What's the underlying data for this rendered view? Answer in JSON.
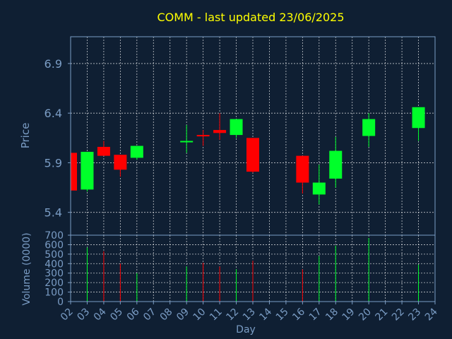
{
  "chart_data": {
    "type": "candlestick",
    "title": "COMM - last updated 23/06/2025",
    "price_panel": {
      "ylabel": "Price",
      "ylim": [
        5.17,
        7.17
      ],
      "yticks": [
        "5.4",
        "5.9",
        "6.4",
        "6.9"
      ]
    },
    "volume_panel": {
      "ylabel": "Volume (0000)",
      "ylim": [
        0,
        700
      ],
      "yticks": [
        "0",
        "100",
        "200",
        "300",
        "400",
        "500",
        "600",
        "700"
      ]
    },
    "xlabel": "Day",
    "xlim": [
      2,
      24
    ],
    "x_ticks": [
      "02",
      "03",
      "04",
      "05",
      "06",
      "07",
      "08",
      "09",
      "10",
      "11",
      "12",
      "13",
      "14",
      "15",
      "16",
      "17",
      "18",
      "19",
      "20",
      "21",
      "22",
      "23",
      "24"
    ],
    "grid": true,
    "colors": {
      "up": "#00ff2a",
      "down": "#ff0000",
      "title": "#ffff00",
      "axis_text": "#7a9cc4",
      "frame": "#7a9cc4",
      "background": "#0f1f33"
    },
    "candles": [
      {
        "day": 2,
        "open": 6.0,
        "high": 6.0,
        "low": 5.62,
        "close": 5.62,
        "volume": 0
      },
      {
        "day": 3,
        "open": 5.63,
        "high": 6.01,
        "low": 5.61,
        "close": 6.01,
        "volume": 570
      },
      {
        "day": 4,
        "open": 6.06,
        "high": 6.12,
        "low": 5.97,
        "close": 5.97,
        "volume": 530
      },
      {
        "day": 5,
        "open": 5.98,
        "high": 5.98,
        "low": 5.76,
        "close": 5.83,
        "volume": 400
      },
      {
        "day": 6,
        "open": 5.95,
        "high": 6.07,
        "low": 5.93,
        "close": 6.07,
        "volume": 300
      },
      {
        "day": 9,
        "open": 6.11,
        "high": 6.28,
        "low": 6.0,
        "close": 6.12,
        "volume": 370
      },
      {
        "day": 10,
        "open": 6.18,
        "high": 6.23,
        "low": 6.07,
        "close": 6.17,
        "volume": 410
      },
      {
        "day": 11,
        "open": 6.23,
        "high": 6.4,
        "low": 6.13,
        "close": 6.2,
        "volume": 370
      },
      {
        "day": 12,
        "open": 6.18,
        "high": 6.34,
        "low": 6.15,
        "close": 6.34,
        "volume": 340
      },
      {
        "day": 13,
        "open": 6.15,
        "high": 6.15,
        "low": 5.8,
        "close": 5.81,
        "volume": 430
      },
      {
        "day": 16,
        "open": 5.97,
        "high": 5.97,
        "low": 5.59,
        "close": 5.7,
        "volume": 340
      },
      {
        "day": 17,
        "open": 5.58,
        "high": 5.88,
        "low": 5.48,
        "close": 5.7,
        "volume": 480
      },
      {
        "day": 18,
        "open": 5.74,
        "high": 6.16,
        "low": 5.65,
        "close": 6.02,
        "volume": 590
      },
      {
        "day": 20,
        "open": 6.17,
        "high": 6.4,
        "low": 6.06,
        "close": 6.34,
        "volume": 670
      },
      {
        "day": 23,
        "open": 6.25,
        "high": 6.46,
        "low": 6.12,
        "close": 6.46,
        "volume": 390
      }
    ]
  }
}
